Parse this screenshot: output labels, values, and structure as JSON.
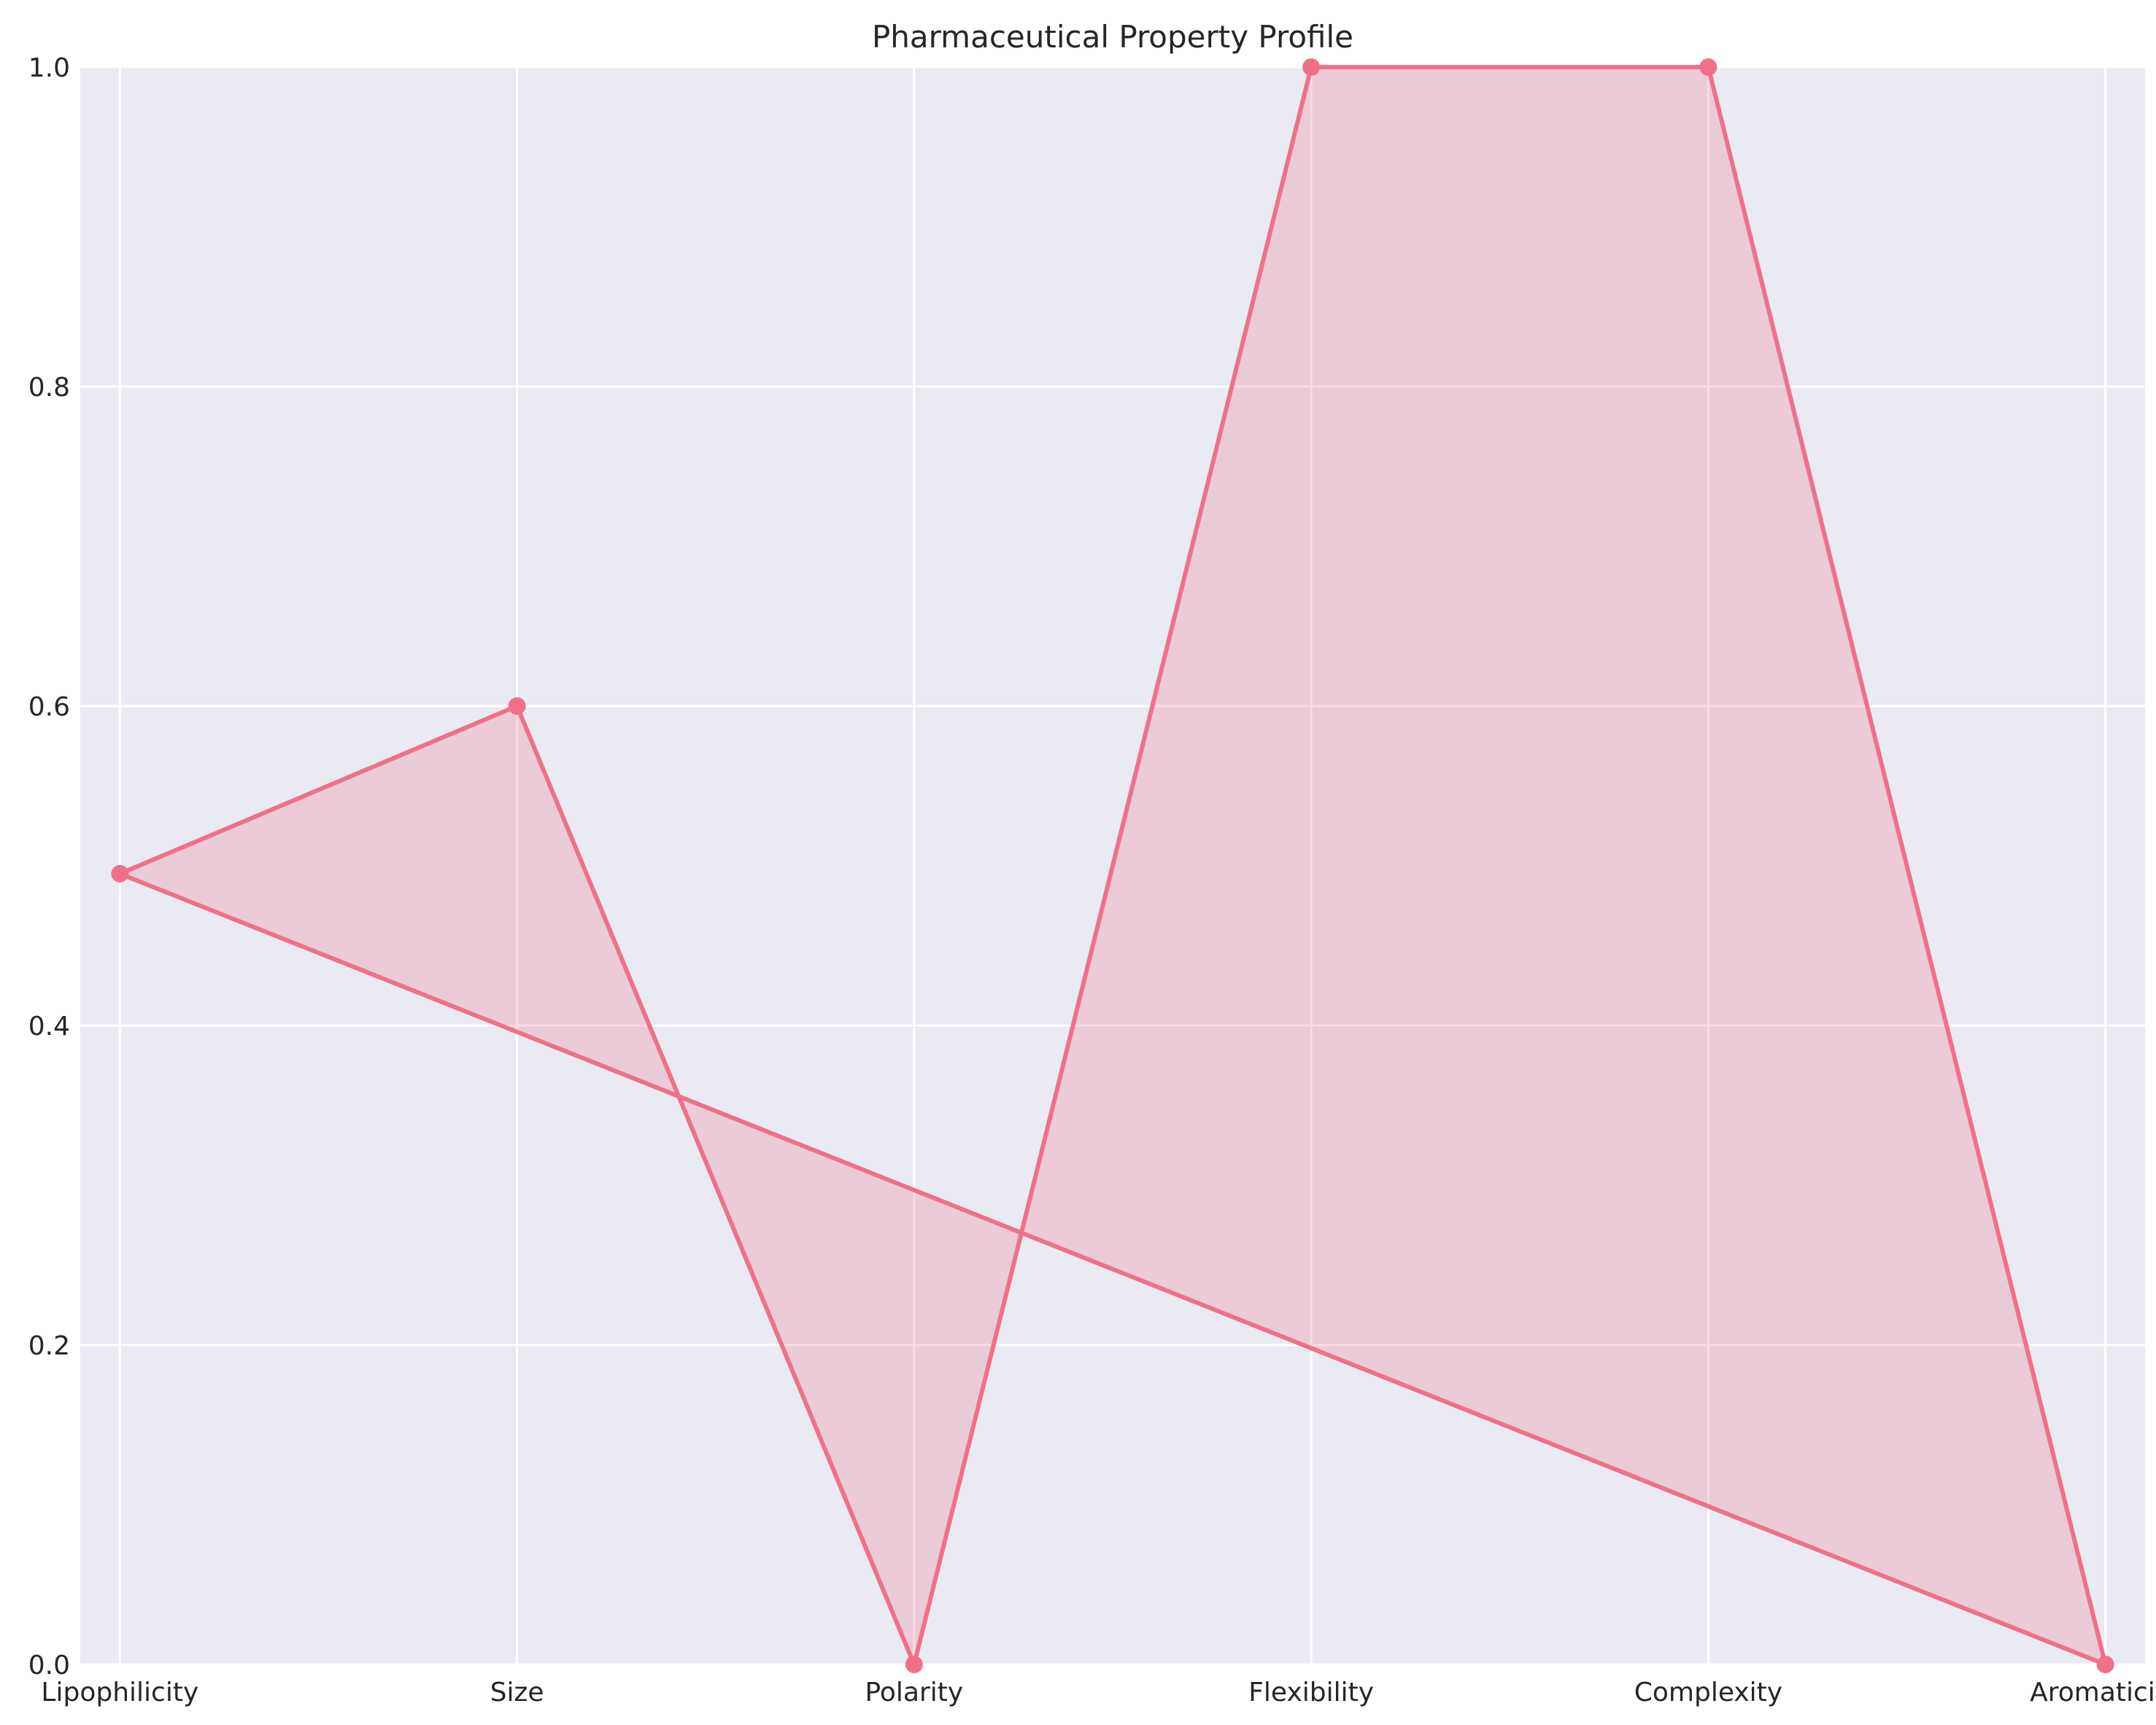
{
  "chart_data": {
    "type": "area",
    "title": "Pharmaceutical Property Profile",
    "xlabel": "",
    "ylabel": "",
    "categories": [
      "Lipophilicity",
      "Size",
      "Polarity",
      "Flexibility",
      "Complexity",
      "Aromaticity"
    ],
    "series": [
      {
        "values": [
          0.495,
          0.6,
          0.0,
          1.0,
          1.0,
          0.0
        ]
      }
    ],
    "closed_polygon": true,
    "ylim": [
      0,
      1
    ],
    "yticks": [
      "0.0",
      "0.2",
      "0.4",
      "0.6",
      "0.8",
      "1.0"
    ],
    "grid": true,
    "legend": "none",
    "colors": {
      "line": "#f0708a",
      "fill": "#f0708a",
      "fill_opacity": 0.25,
      "plot_background": "#eaeaf2",
      "grid": "#ffffff"
    }
  }
}
